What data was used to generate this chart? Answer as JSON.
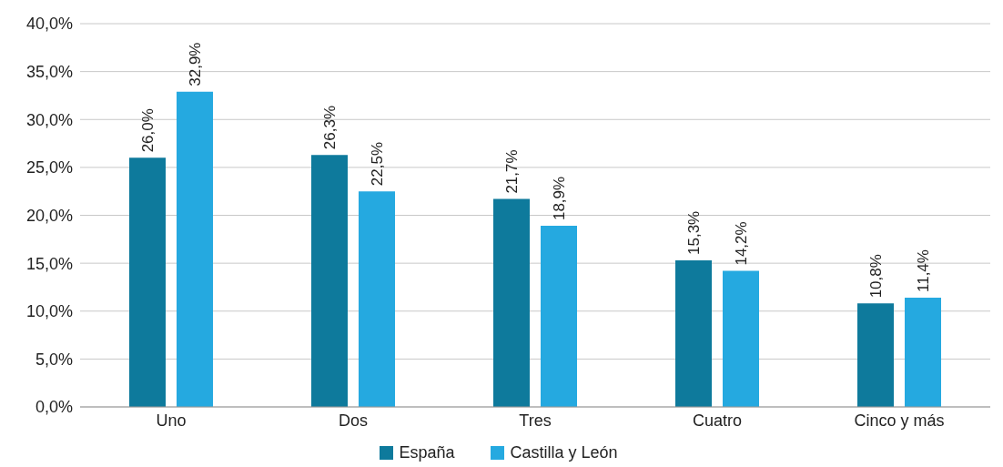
{
  "chart_data": {
    "type": "bar",
    "categories": [
      "Uno",
      "Dos",
      "Tres",
      "Cuatro",
      "Cinco y más"
    ],
    "series": [
      {
        "name": "España",
        "color": "#0e7a9c",
        "values": [
          26.0,
          26.3,
          21.7,
          15.3,
          10.8
        ],
        "value_labels": [
          "26,0%",
          "26,3%",
          "21,7%",
          "15,3%",
          "10,8%"
        ]
      },
      {
        "name": "Castilla y León",
        "color": "#25a9e0",
        "values": [
          32.9,
          22.5,
          18.9,
          14.2,
          11.4
        ],
        "value_labels": [
          "32,9%",
          "22,5%",
          "18,9%",
          "14,2%",
          "11,4%"
        ]
      }
    ],
    "ylim": [
      0,
      40
    ],
    "yticks": [
      {
        "value": 0,
        "label": "0,0%"
      },
      {
        "value": 5,
        "label": "5,0%"
      },
      {
        "value": 10,
        "label": "10,0%"
      },
      {
        "value": 15,
        "label": "15,0%"
      },
      {
        "value": 20,
        "label": "20,0%"
      },
      {
        "value": 25,
        "label": "25,0%"
      },
      {
        "value": 30,
        "label": "30,0%"
      },
      {
        "value": 35,
        "label": "35,0%"
      },
      {
        "value": 40,
        "label": "40,0%"
      }
    ],
    "grid": "y",
    "legend": "bottom"
  }
}
